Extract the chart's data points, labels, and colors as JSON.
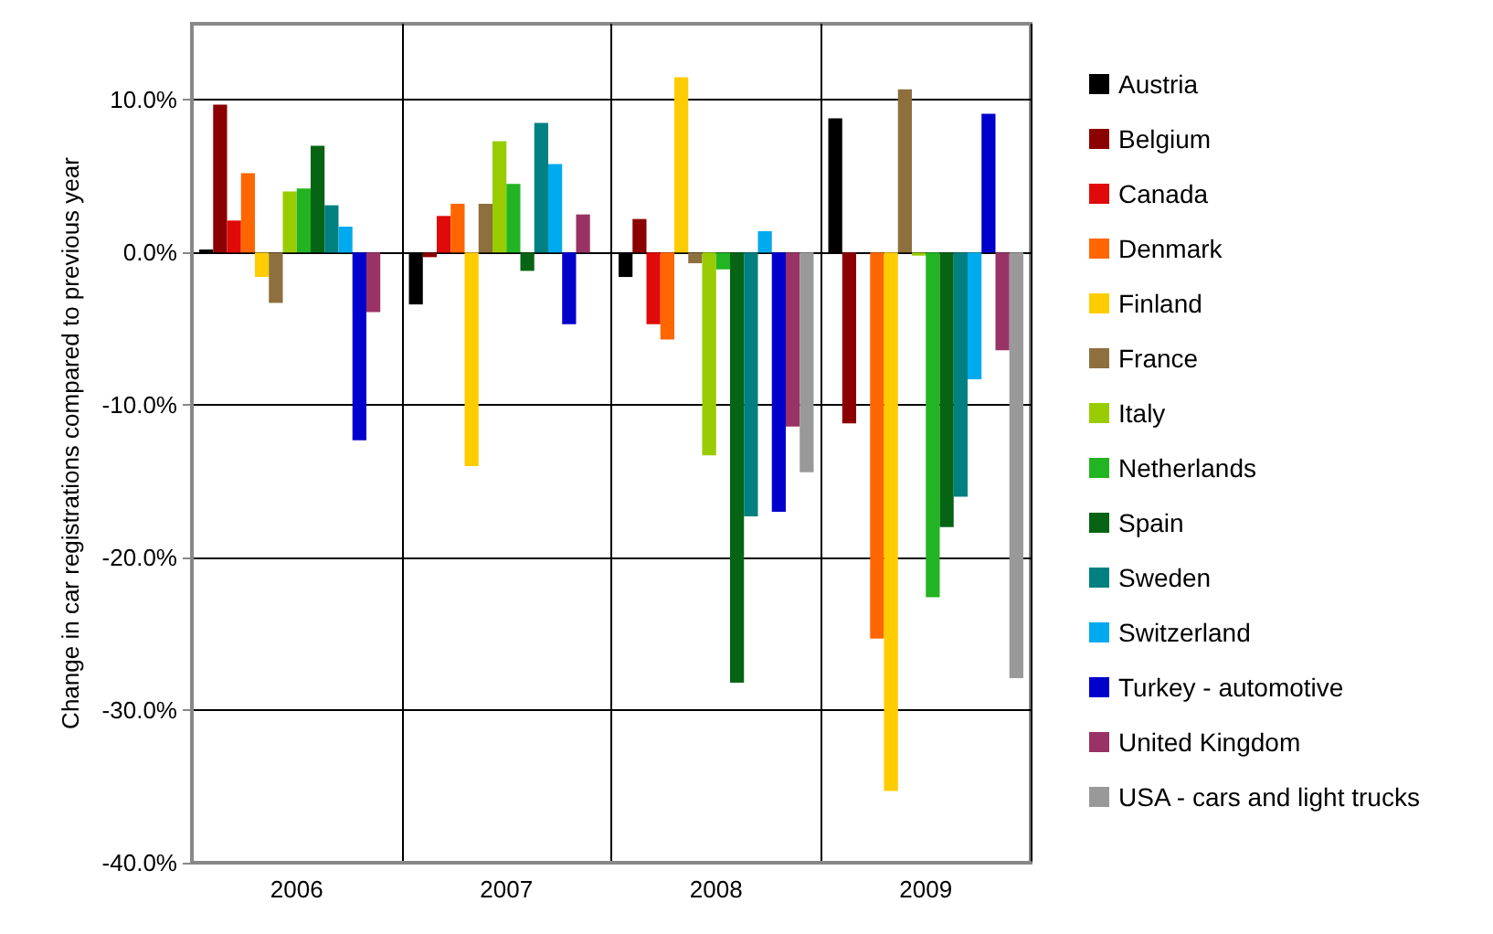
{
  "chart_data": {
    "type": "bar",
    "ylabel": "Change in car registrations compared to previous year",
    "categories": [
      "2006",
      "2007",
      "2008",
      "2009"
    ],
    "ylim": [
      -40,
      15
    ],
    "yticks": [
      {
        "value": -40,
        "label": "-40.0%"
      },
      {
        "value": -30,
        "label": "-30.0%"
      },
      {
        "value": -20,
        "label": "-20.0%"
      },
      {
        "value": -10,
        "label": "-10.0%"
      },
      {
        "value": 0,
        "label": "0.0%"
      },
      {
        "value": 10,
        "label": "10.0%"
      }
    ],
    "grid": true,
    "legend": "right",
    "series": [
      {
        "name": "Austria",
        "color": "#000000",
        "values": [
          0.2,
          -3.4,
          -1.6,
          8.8
        ]
      },
      {
        "name": "Belgium",
        "color": "#8b0000",
        "values": [
          9.7,
          -0.3,
          2.2,
          -11.2
        ]
      },
      {
        "name": "Canada",
        "color": "#e00a0a",
        "values": [
          2.1,
          2.4,
          -4.7,
          null
        ]
      },
      {
        "name": "Denmark",
        "color": "#ff6600",
        "values": [
          5.2,
          3.2,
          -5.7,
          -25.3
        ]
      },
      {
        "name": "Finland",
        "color": "#ffcc00",
        "values": [
          -1.6,
          -14.0,
          11.5,
          -35.3
        ]
      },
      {
        "name": "France",
        "color": "#8e6f3e",
        "values": [
          -3.3,
          3.2,
          -0.7,
          10.7
        ]
      },
      {
        "name": "Italy",
        "color": "#99cc00",
        "values": [
          4.0,
          7.3,
          -13.3,
          -0.2
        ]
      },
      {
        "name": "Netherlands",
        "color": "#22b422",
        "values": [
          4.2,
          4.5,
          -1.1,
          -22.6
        ]
      },
      {
        "name": "Spain",
        "color": "#066414",
        "values": [
          7.0,
          -1.2,
          -28.2,
          -18.0
        ]
      },
      {
        "name": "Sweden",
        "color": "#008080",
        "values": [
          3.1,
          8.5,
          -17.3,
          -16.0
        ]
      },
      {
        "name": "Switzerland",
        "color": "#00aaee",
        "values": [
          1.7,
          5.8,
          1.4,
          -8.3
        ]
      },
      {
        "name": "Turkey - automotive",
        "color": "#0000cc",
        "values": [
          -12.3,
          -4.7,
          -17.0,
          9.1
        ]
      },
      {
        "name": "United Kingdom",
        "color": "#993366",
        "values": [
          -3.9,
          2.5,
          -11.4,
          -6.4
        ]
      },
      {
        "name": "USA - cars and light trucks",
        "color": "#999999",
        "values": [
          null,
          null,
          -14.4,
          -27.9
        ]
      }
    ]
  }
}
